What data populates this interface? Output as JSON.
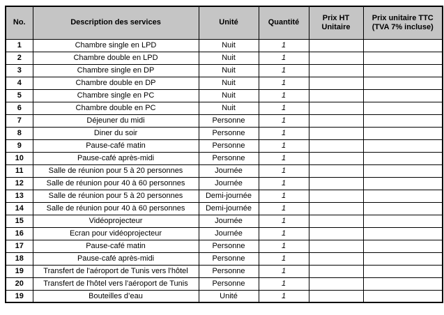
{
  "colors": {
    "header_bg": "#C5C5C5",
    "border": "#000000",
    "text": "#000000"
  },
  "table": {
    "columns": [
      {
        "key": "no",
        "label": "No."
      },
      {
        "key": "description",
        "label": "Description des services"
      },
      {
        "key": "unite",
        "label": "Unité"
      },
      {
        "key": "quantite",
        "label": "Quantité"
      },
      {
        "key": "prix_ht",
        "label": "Prix HT Unitaire"
      },
      {
        "key": "prix_ttc",
        "label": "Prix unitaire TTC (TVA 7% incluse)"
      }
    ],
    "rows": [
      {
        "no": "1",
        "description": "Chambre single en LPD",
        "unite": "Nuit",
        "quantite": "1",
        "prix_ht": "",
        "prix_ttc": ""
      },
      {
        "no": "2",
        "description": "Chambre double en LPD",
        "unite": "Nuit",
        "quantite": "1",
        "prix_ht": "",
        "prix_ttc": ""
      },
      {
        "no": "3",
        "description": "Chambre single en DP",
        "unite": "Nuit",
        "quantite": "1",
        "prix_ht": "",
        "prix_ttc": ""
      },
      {
        "no": "4",
        "description": "Chambre double en DP",
        "unite": "Nuit",
        "quantite": "1",
        "prix_ht": "",
        "prix_ttc": ""
      },
      {
        "no": "5",
        "description": "Chambre single en PC",
        "unite": "Nuit",
        "quantite": "1",
        "prix_ht": "",
        "prix_ttc": ""
      },
      {
        "no": "6",
        "description": "Chambre double en PC",
        "unite": "Nuit",
        "quantite": "1",
        "prix_ht": "",
        "prix_ttc": ""
      },
      {
        "no": "7",
        "description": "Déjeuner du midi",
        "unite": "Personne",
        "quantite": "1",
        "prix_ht": "",
        "prix_ttc": ""
      },
      {
        "no": "8",
        "description": "Diner du soir",
        "unite": "Personne",
        "quantite": "1",
        "prix_ht": "",
        "prix_ttc": ""
      },
      {
        "no": "9",
        "description": "Pause-café matin",
        "unite": "Personne",
        "quantite": "1",
        "prix_ht": "",
        "prix_ttc": ""
      },
      {
        "no": "10",
        "description": "Pause-café après-midi",
        "unite": "Personne",
        "quantite": "1",
        "prix_ht": "",
        "prix_ttc": ""
      },
      {
        "no": "11",
        "description": "Salle de réunion pour 5 à 20 personnes",
        "unite": "Journée",
        "quantite": "1",
        "prix_ht": "",
        "prix_ttc": ""
      },
      {
        "no": "12",
        "description": "Salle de réunion pour 40 à 60 personnes",
        "unite": "Journée",
        "quantite": "1",
        "prix_ht": "",
        "prix_ttc": ""
      },
      {
        "no": "13",
        "description": "Salle de réunion pour 5 à 20 personnes",
        "unite": "Demi-journée",
        "quantite": "1",
        "prix_ht": "",
        "prix_ttc": ""
      },
      {
        "no": "14",
        "description": "Salle de réunion pour 40 à 60 personnes",
        "unite": "Demi-journée",
        "quantite": "1",
        "prix_ht": "",
        "prix_ttc": ""
      },
      {
        "no": "15",
        "description": "Vidéoprojecteur",
        "unite": "Journée",
        "quantite": "1",
        "prix_ht": "",
        "prix_ttc": ""
      },
      {
        "no": "16",
        "description": "Ecran pour vidéoprojecteur",
        "unite": "Journée",
        "quantite": "1",
        "prix_ht": "",
        "prix_ttc": ""
      },
      {
        "no": "17",
        "description": "Pause-café matin",
        "unite": "Personne",
        "quantite": "1",
        "prix_ht": "",
        "prix_ttc": ""
      },
      {
        "no": "18",
        "description": "Pause-café après-midi",
        "unite": "Personne",
        "quantite": "1",
        "prix_ht": "",
        "prix_ttc": ""
      },
      {
        "no": "19",
        "description": "Transfert de l'aéroport de Tunis vers l'hôtel",
        "unite": "Personne",
        "quantite": "1",
        "prix_ht": "",
        "prix_ttc": ""
      },
      {
        "no": "20",
        "description": "Transfert de l'hôtel vers l'aéroport de Tunis",
        "unite": "Personne",
        "quantite": "1",
        "prix_ht": "",
        "prix_ttc": ""
      },
      {
        "no": "19",
        "description": "Bouteilles d’eau",
        "unite": "Unité",
        "quantite": "1",
        "prix_ht": "",
        "prix_ttc": ""
      }
    ]
  }
}
